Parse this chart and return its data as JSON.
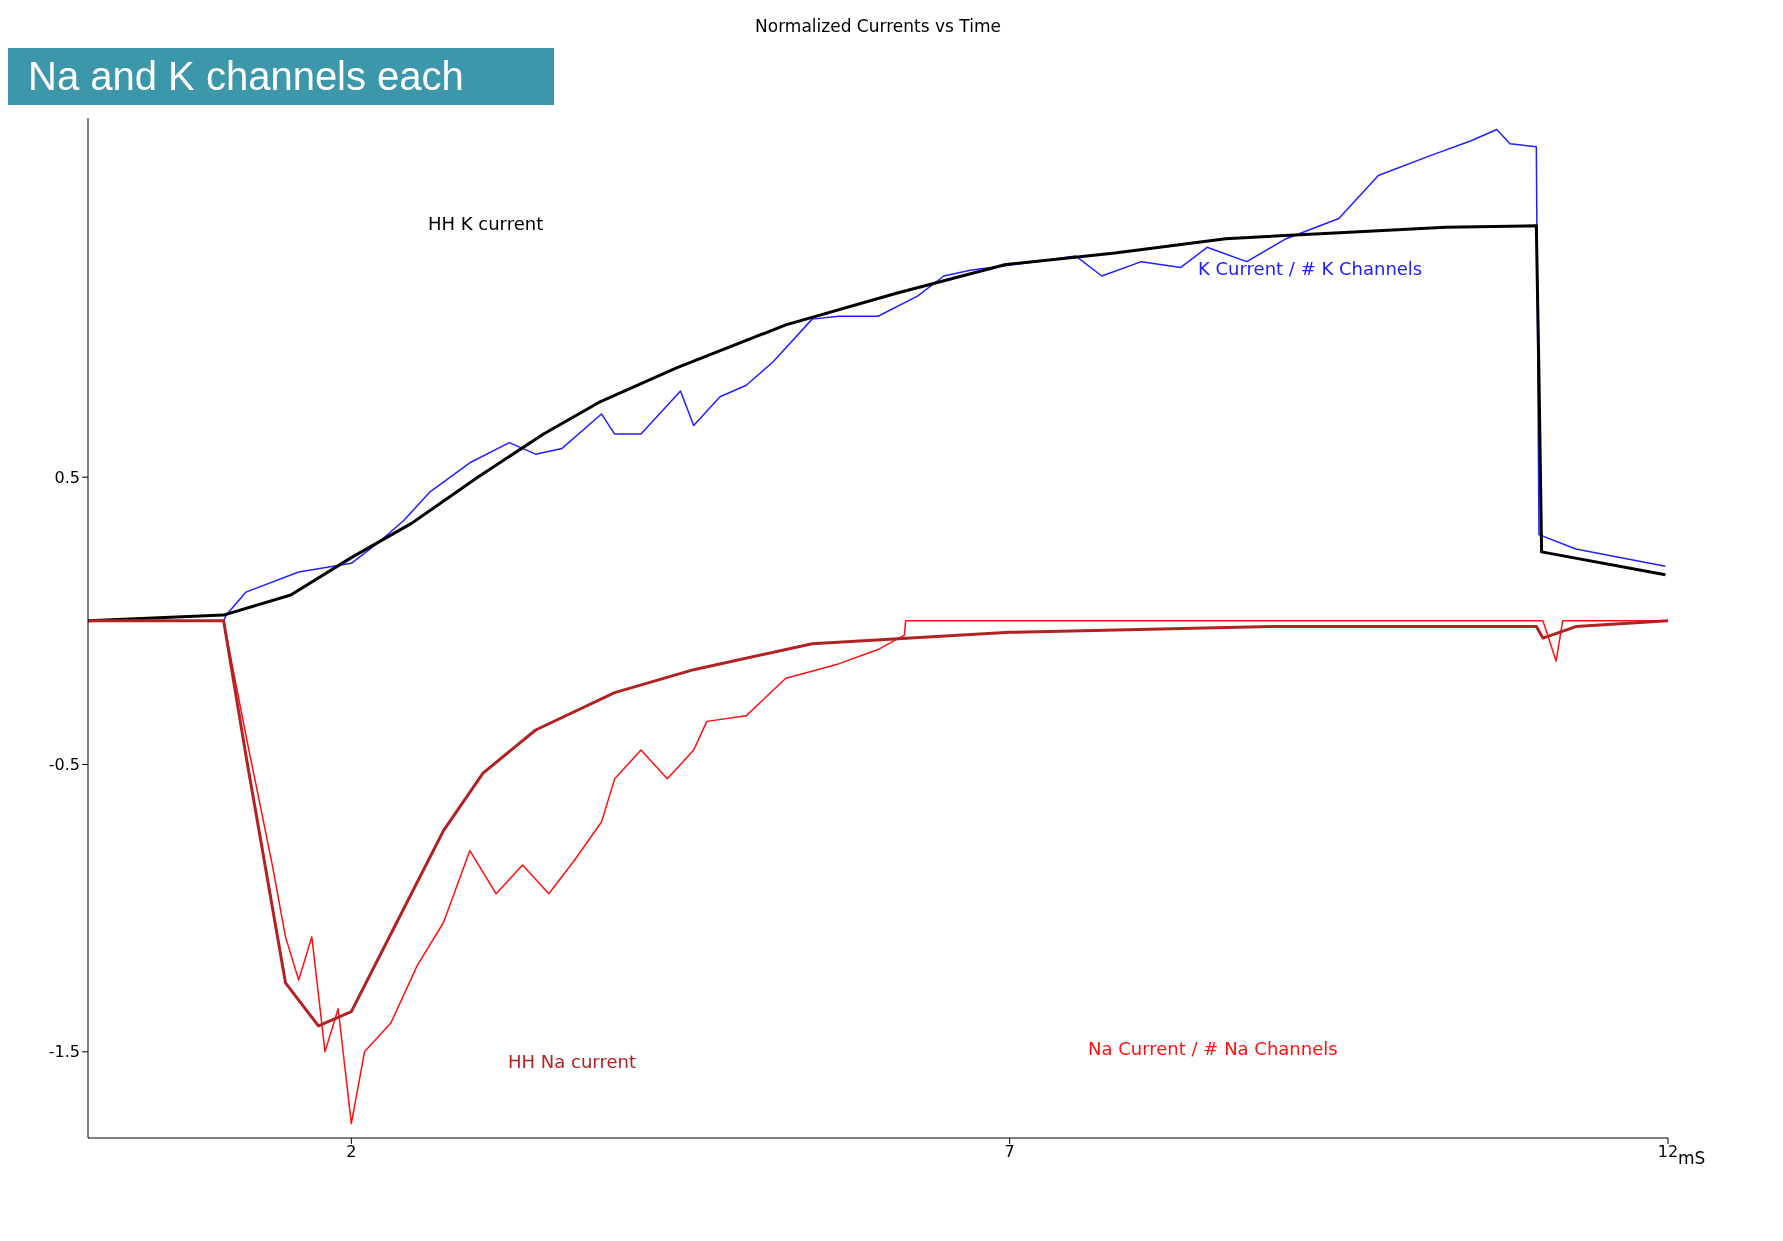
{
  "chart_data": {
    "type": "line",
    "title": "Normalized Currents vs Time",
    "xlabel": "mS",
    "annotations": [
      "Na and K channels each"
    ],
    "xlim": [
      0,
      12
    ],
    "xticks": [
      2,
      7,
      12
    ],
    "ylim": [
      -1.8,
      1.75
    ],
    "yticks": [
      0.5,
      -0.5,
      -1.5
    ],
    "marker": "none",
    "line_style": "solid",
    "series": [
      {
        "name": "K Current / # K Channels",
        "color": "#2020ff",
        "x": [
          0,
          1.03,
          1.05,
          1.2,
          1.6,
          2.0,
          2.2,
          2.4,
          2.6,
          2.9,
          3.2,
          3.4,
          3.6,
          3.9,
          4.0,
          4.2,
          4.5,
          4.6,
          4.8,
          5.0,
          5.2,
          5.5,
          5.7,
          6.0,
          6.3,
          6.5,
          6.7,
          7.2,
          7.5,
          7.7,
          8.0,
          8.3,
          8.5,
          8.8,
          9.1,
          9.5,
          9.8,
          10.2,
          10.5,
          10.7,
          10.8,
          11.0,
          11.02,
          11.3,
          11.98
        ],
        "values": [
          0,
          0,
          0.02,
          0.1,
          0.17,
          0.2,
          0.27,
          0.35,
          0.45,
          0.55,
          0.62,
          0.58,
          0.6,
          0.72,
          0.65,
          0.65,
          0.8,
          0.68,
          0.78,
          0.82,
          0.9,
          1.05,
          1.06,
          1.06,
          1.13,
          1.2,
          1.22,
          1.25,
          1.27,
          1.2,
          1.25,
          1.23,
          1.3,
          1.25,
          1.33,
          1.4,
          1.55,
          1.62,
          1.67,
          1.71,
          1.66,
          1.65,
          0.3,
          0.25,
          0.19
        ]
      },
      {
        "name": "HH K current",
        "color": "#000000",
        "x": [
          0,
          1.03,
          1.54,
          2.0,
          2.46,
          2.96,
          3.46,
          3.88,
          4.47,
          5.3,
          6.14,
          6.97,
          7.8,
          8.64,
          9.47,
          10.31,
          11.0,
          11.02,
          11.04,
          11.98
        ],
        "values": [
          0,
          0.02,
          0.09,
          0.22,
          0.34,
          0.5,
          0.65,
          0.76,
          0.88,
          1.03,
          1.14,
          1.24,
          1.28,
          1.33,
          1.35,
          1.37,
          1.375,
          0.85,
          0.24,
          0.16
        ]
      },
      {
        "name": "Na Current / # Na Channels",
        "color": "#ff1010",
        "x": [
          0,
          1.03,
          1.2,
          1.4,
          1.5,
          1.6,
          1.7,
          1.8,
          1.9,
          2.0,
          2.1,
          2.3,
          2.5,
          2.7,
          2.9,
          3.1,
          3.3,
          3.5,
          3.7,
          3.9,
          4.0,
          4.2,
          4.4,
          4.6,
          4.7,
          5.0,
          5.3,
          5.7,
          6.0,
          6.2,
          6.21,
          11.05,
          11.15,
          11.2,
          12
        ],
        "values": [
          0,
          0,
          -0.4,
          -0.85,
          -1.1,
          -1.25,
          -1.1,
          -1.5,
          -1.35,
          -1.75,
          -1.5,
          -1.4,
          -1.2,
          -1.05,
          -0.8,
          -0.95,
          -0.85,
          -0.95,
          -0.83,
          -0.7,
          -0.55,
          -0.45,
          -0.55,
          -0.45,
          -0.35,
          -0.33,
          -0.2,
          -0.15,
          -0.1,
          -0.05,
          0,
          0,
          -0.14,
          0,
          0
        ]
      },
      {
        "name": "HH Na current",
        "color": "#b22222",
        "x": [
          0,
          1.03,
          1.2,
          1.5,
          1.75,
          2.0,
          2.3,
          2.7,
          3.0,
          3.4,
          4.0,
          4.6,
          5.5,
          7.0,
          9.0,
          11.0,
          11.05,
          11.3,
          12
        ],
        "values": [
          0,
          0,
          -0.47,
          -1.26,
          -1.41,
          -1.36,
          -1.09,
          -0.73,
          -0.53,
          -0.38,
          -0.25,
          -0.17,
          -0.08,
          -0.04,
          -0.02,
          -0.02,
          -0.06,
          -0.02,
          0
        ]
      }
    ]
  }
}
